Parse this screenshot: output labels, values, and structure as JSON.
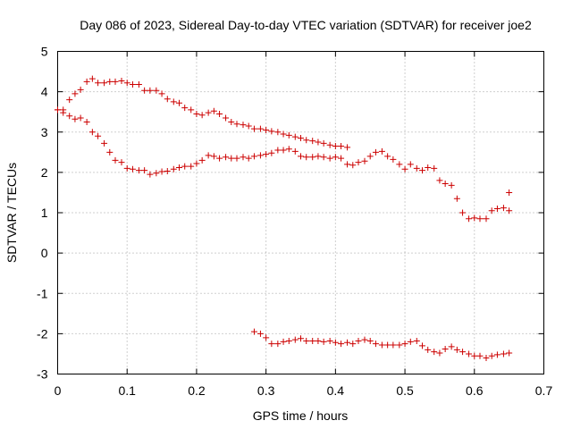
{
  "chart_data": {
    "type": "scatter",
    "title": "Day 086 of 2023, Sidereal Day-to-day VTEC variation (SDTVAR) for receiver joe2",
    "xlabel": "GPS time / hours",
    "ylabel": "SDTVAR / TECUs",
    "xlim": [
      0,
      0.7
    ],
    "ylim": [
      -3,
      5
    ],
    "xticks": [
      "0",
      "0.1",
      "0.2",
      "0.3",
      "0.4",
      "0.5",
      "0.6",
      "0.7"
    ],
    "yticks": [
      "-3",
      "-2",
      "-1",
      "0",
      "1",
      "2",
      "3",
      "4",
      "5"
    ],
    "grid": true,
    "marker": "+",
    "color": "#cc0000",
    "series": [
      {
        "name": "upper track",
        "x": [
          0.0,
          0.008,
          0.017,
          0.025,
          0.033,
          0.042,
          0.05,
          0.058,
          0.067,
          0.075,
          0.083,
          0.092,
          0.1,
          0.108,
          0.117,
          0.125,
          0.133,
          0.142,
          0.15,
          0.158,
          0.167,
          0.175,
          0.183,
          0.192,
          0.2,
          0.208,
          0.217,
          0.225,
          0.233,
          0.242,
          0.25,
          0.258,
          0.267,
          0.275,
          0.283,
          0.292,
          0.3,
          0.308,
          0.317,
          0.325,
          0.333,
          0.342,
          0.35,
          0.358,
          0.367,
          0.375,
          0.383,
          0.392,
          0.4,
          0.408,
          0.417
        ],
        "y": [
          3.55,
          3.55,
          3.8,
          3.95,
          4.05,
          4.25,
          4.32,
          4.22,
          4.22,
          4.25,
          4.25,
          4.27,
          4.22,
          4.18,
          4.18,
          4.03,
          4.03,
          4.03,
          3.95,
          3.82,
          3.75,
          3.72,
          3.6,
          3.55,
          3.45,
          3.42,
          3.48,
          3.52,
          3.45,
          3.35,
          3.25,
          3.2,
          3.18,
          3.15,
          3.08,
          3.08,
          3.05,
          3.02,
          3.0,
          2.95,
          2.92,
          2.88,
          2.85,
          2.8,
          2.78,
          2.75,
          2.72,
          2.68,
          2.65,
          2.65,
          2.62
        ]
      },
      {
        "name": "middle track",
        "x": [
          0.0,
          0.008,
          0.017,
          0.025,
          0.033,
          0.042,
          0.05,
          0.058,
          0.067,
          0.075,
          0.083,
          0.092,
          0.1,
          0.108,
          0.117,
          0.125,
          0.133,
          0.142,
          0.15,
          0.158,
          0.167,
          0.175,
          0.183,
          0.192,
          0.2,
          0.208,
          0.217,
          0.225,
          0.233,
          0.242,
          0.25,
          0.258,
          0.267,
          0.275,
          0.283,
          0.292,
          0.3,
          0.308,
          0.317,
          0.325,
          0.333,
          0.342,
          0.35,
          0.358,
          0.367,
          0.375,
          0.383,
          0.392,
          0.4,
          0.408,
          0.417,
          0.425,
          0.433,
          0.442,
          0.45,
          0.458,
          0.467,
          0.475,
          0.483,
          0.492,
          0.5,
          0.508,
          0.517,
          0.525,
          0.533,
          0.542,
          0.55,
          0.558,
          0.567,
          0.575,
          0.583,
          0.592,
          0.6,
          0.608,
          0.617,
          0.625,
          0.633,
          0.642,
          0.65,
          0.65
        ],
        "y": [
          3.55,
          3.48,
          3.4,
          3.32,
          3.35,
          3.25,
          3.0,
          2.9,
          2.72,
          2.5,
          2.3,
          2.25,
          2.1,
          2.08,
          2.05,
          2.05,
          1.95,
          1.98,
          2.02,
          2.03,
          2.08,
          2.12,
          2.15,
          2.15,
          2.22,
          2.3,
          2.42,
          2.4,
          2.35,
          2.38,
          2.35,
          2.35,
          2.38,
          2.35,
          2.4,
          2.42,
          2.45,
          2.48,
          2.55,
          2.55,
          2.58,
          2.52,
          2.4,
          2.38,
          2.38,
          2.4,
          2.38,
          2.35,
          2.38,
          2.35,
          2.2,
          2.18,
          2.25,
          2.28,
          2.4,
          2.5,
          2.52,
          2.4,
          2.32,
          2.2,
          2.08,
          2.2,
          2.1,
          2.05,
          2.12,
          2.1,
          1.8,
          1.72,
          1.68,
          1.35,
          1.0,
          0.85,
          0.87,
          0.85,
          0.85,
          1.05,
          1.1,
          1.12,
          1.05,
          1.5
        ]
      },
      {
        "name": "lower track",
        "x": [
          0.283,
          0.292,
          0.3,
          0.308,
          0.317,
          0.325,
          0.333,
          0.342,
          0.35,
          0.358,
          0.367,
          0.375,
          0.383,
          0.392,
          0.4,
          0.408,
          0.417,
          0.425,
          0.433,
          0.442,
          0.45,
          0.458,
          0.467,
          0.475,
          0.483,
          0.492,
          0.5,
          0.508,
          0.517,
          0.525,
          0.533,
          0.542,
          0.55,
          0.558,
          0.567,
          0.575,
          0.583,
          0.592,
          0.6,
          0.608,
          0.617,
          0.625,
          0.633,
          0.642,
          0.65
        ],
        "y": [
          -1.95,
          -2.0,
          -2.1,
          -2.25,
          -2.25,
          -2.2,
          -2.18,
          -2.15,
          -2.12,
          -2.18,
          -2.18,
          -2.18,
          -2.2,
          -2.18,
          -2.22,
          -2.25,
          -2.22,
          -2.25,
          -2.18,
          -2.15,
          -2.18,
          -2.25,
          -2.28,
          -2.28,
          -2.28,
          -2.28,
          -2.25,
          -2.2,
          -2.18,
          -2.3,
          -2.4,
          -2.45,
          -2.48,
          -2.38,
          -2.32,
          -2.4,
          -2.45,
          -2.5,
          -2.55,
          -2.55,
          -2.6,
          -2.55,
          -2.52,
          -2.5,
          -2.48
        ]
      }
    ]
  }
}
